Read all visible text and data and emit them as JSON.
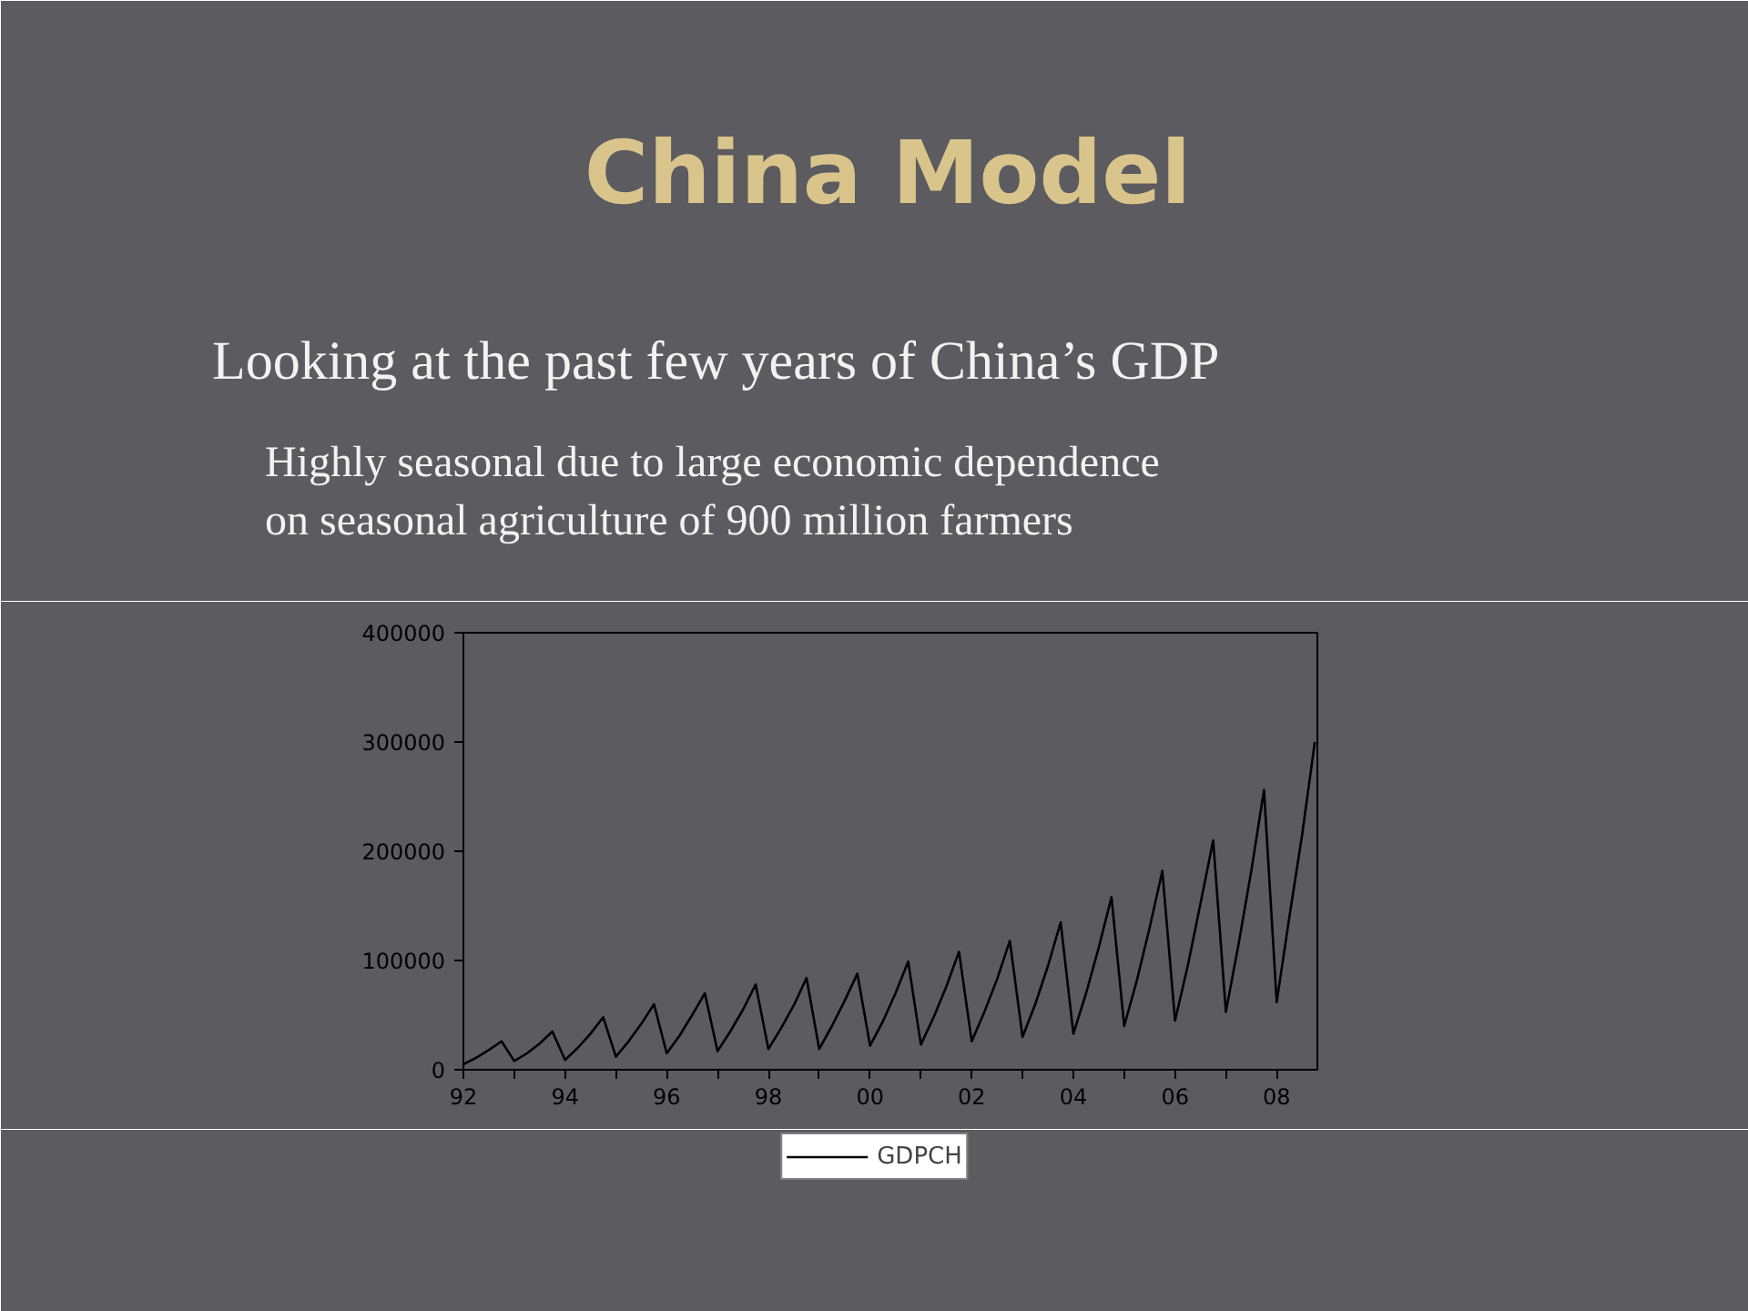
{
  "chart_data": {
    "type": "line",
    "title": "China Model",
    "subtitle": "Looking at the past few years of China’s GDP",
    "annotations": [
      "Highly seasonal due to large economic dependence on seasonal agriculture of 900 million farmers"
    ],
    "x": [
      1992,
      1992.25,
      1992.5,
      1992.75,
      1993,
      1993.25,
      1993.5,
      1993.75,
      1994,
      1994.25,
      1994.5,
      1994.75,
      1995,
      1995.25,
      1995.5,
      1995.75,
      1996,
      1996.25,
      1996.5,
      1996.75,
      1997,
      1997.25,
      1997.5,
      1997.75,
      1998,
      1998.25,
      1998.5,
      1998.75,
      1999,
      1999.25,
      1999.5,
      1999.75,
      2000,
      2000.25,
      2000.5,
      2000.75,
      2001,
      2001.25,
      2001.5,
      2001.75,
      2002,
      2002.25,
      2002.5,
      2002.75,
      2003,
      2003.25,
      2003.5,
      2003.75,
      2004,
      2004.25,
      2004.5,
      2004.75,
      2005,
      2005.25,
      2005.5,
      2005.75,
      2006,
      2006.25,
      2006.5,
      2006.75,
      2007,
      2007.25,
      2007.5,
      2007.75,
      2008,
      2008.25,
      2008.5,
      2008.75
    ],
    "series": [
      {
        "name": "GDPCH",
        "color": "#000000",
        "values": [
          5000,
          11000,
          18000,
          26000,
          8000,
          15000,
          24000,
          35000,
          9000,
          20000,
          33000,
          48000,
          12000,
          26000,
          42000,
          60000,
          15000,
          31000,
          50000,
          70000,
          17000,
          35000,
          55000,
          78000,
          19000,
          38000,
          59000,
          84000,
          19000,
          40000,
          63000,
          88000,
          22000,
          44000,
          70000,
          99000,
          23000,
          48000,
          76000,
          108000,
          26000,
          53000,
          83000,
          118000,
          30000,
          60000,
          95000,
          135000,
          33000,
          70000,
          112000,
          158000,
          40000,
          82000,
          130000,
          182000,
          45000,
          95000,
          152000,
          210000,
          53000,
          115000,
          182000,
          256000,
          62000,
          140000,
          215000,
          300000
        ]
      }
    ],
    "xlim": [
      1992,
      2008.8
    ],
    "ylim": [
      0,
      400000
    ],
    "xticks": [
      {
        "value": 1992,
        "label": "92"
      },
      {
        "value": 1993,
        "label": null
      },
      {
        "value": 1994,
        "label": "94"
      },
      {
        "value": 1995,
        "label": null
      },
      {
        "value": 1996,
        "label": "96"
      },
      {
        "value": 1997,
        "label": null
      },
      {
        "value": 1998,
        "label": "98"
      },
      {
        "value": 1999,
        "label": null
      },
      {
        "value": 2000,
        "label": "00"
      },
      {
        "value": 2001,
        "label": null
      },
      {
        "value": 2002,
        "label": "02"
      },
      {
        "value": 2003,
        "label": null
      },
      {
        "value": 2004,
        "label": "04"
      },
      {
        "value": 2005,
        "label": null
      },
      {
        "value": 2006,
        "label": "06"
      },
      {
        "value": 2007,
        "label": null
      },
      {
        "value": 2008,
        "label": "08"
      }
    ],
    "yticks": [
      0,
      100000,
      200000,
      300000,
      400000
    ],
    "legend": "bottom"
  }
}
